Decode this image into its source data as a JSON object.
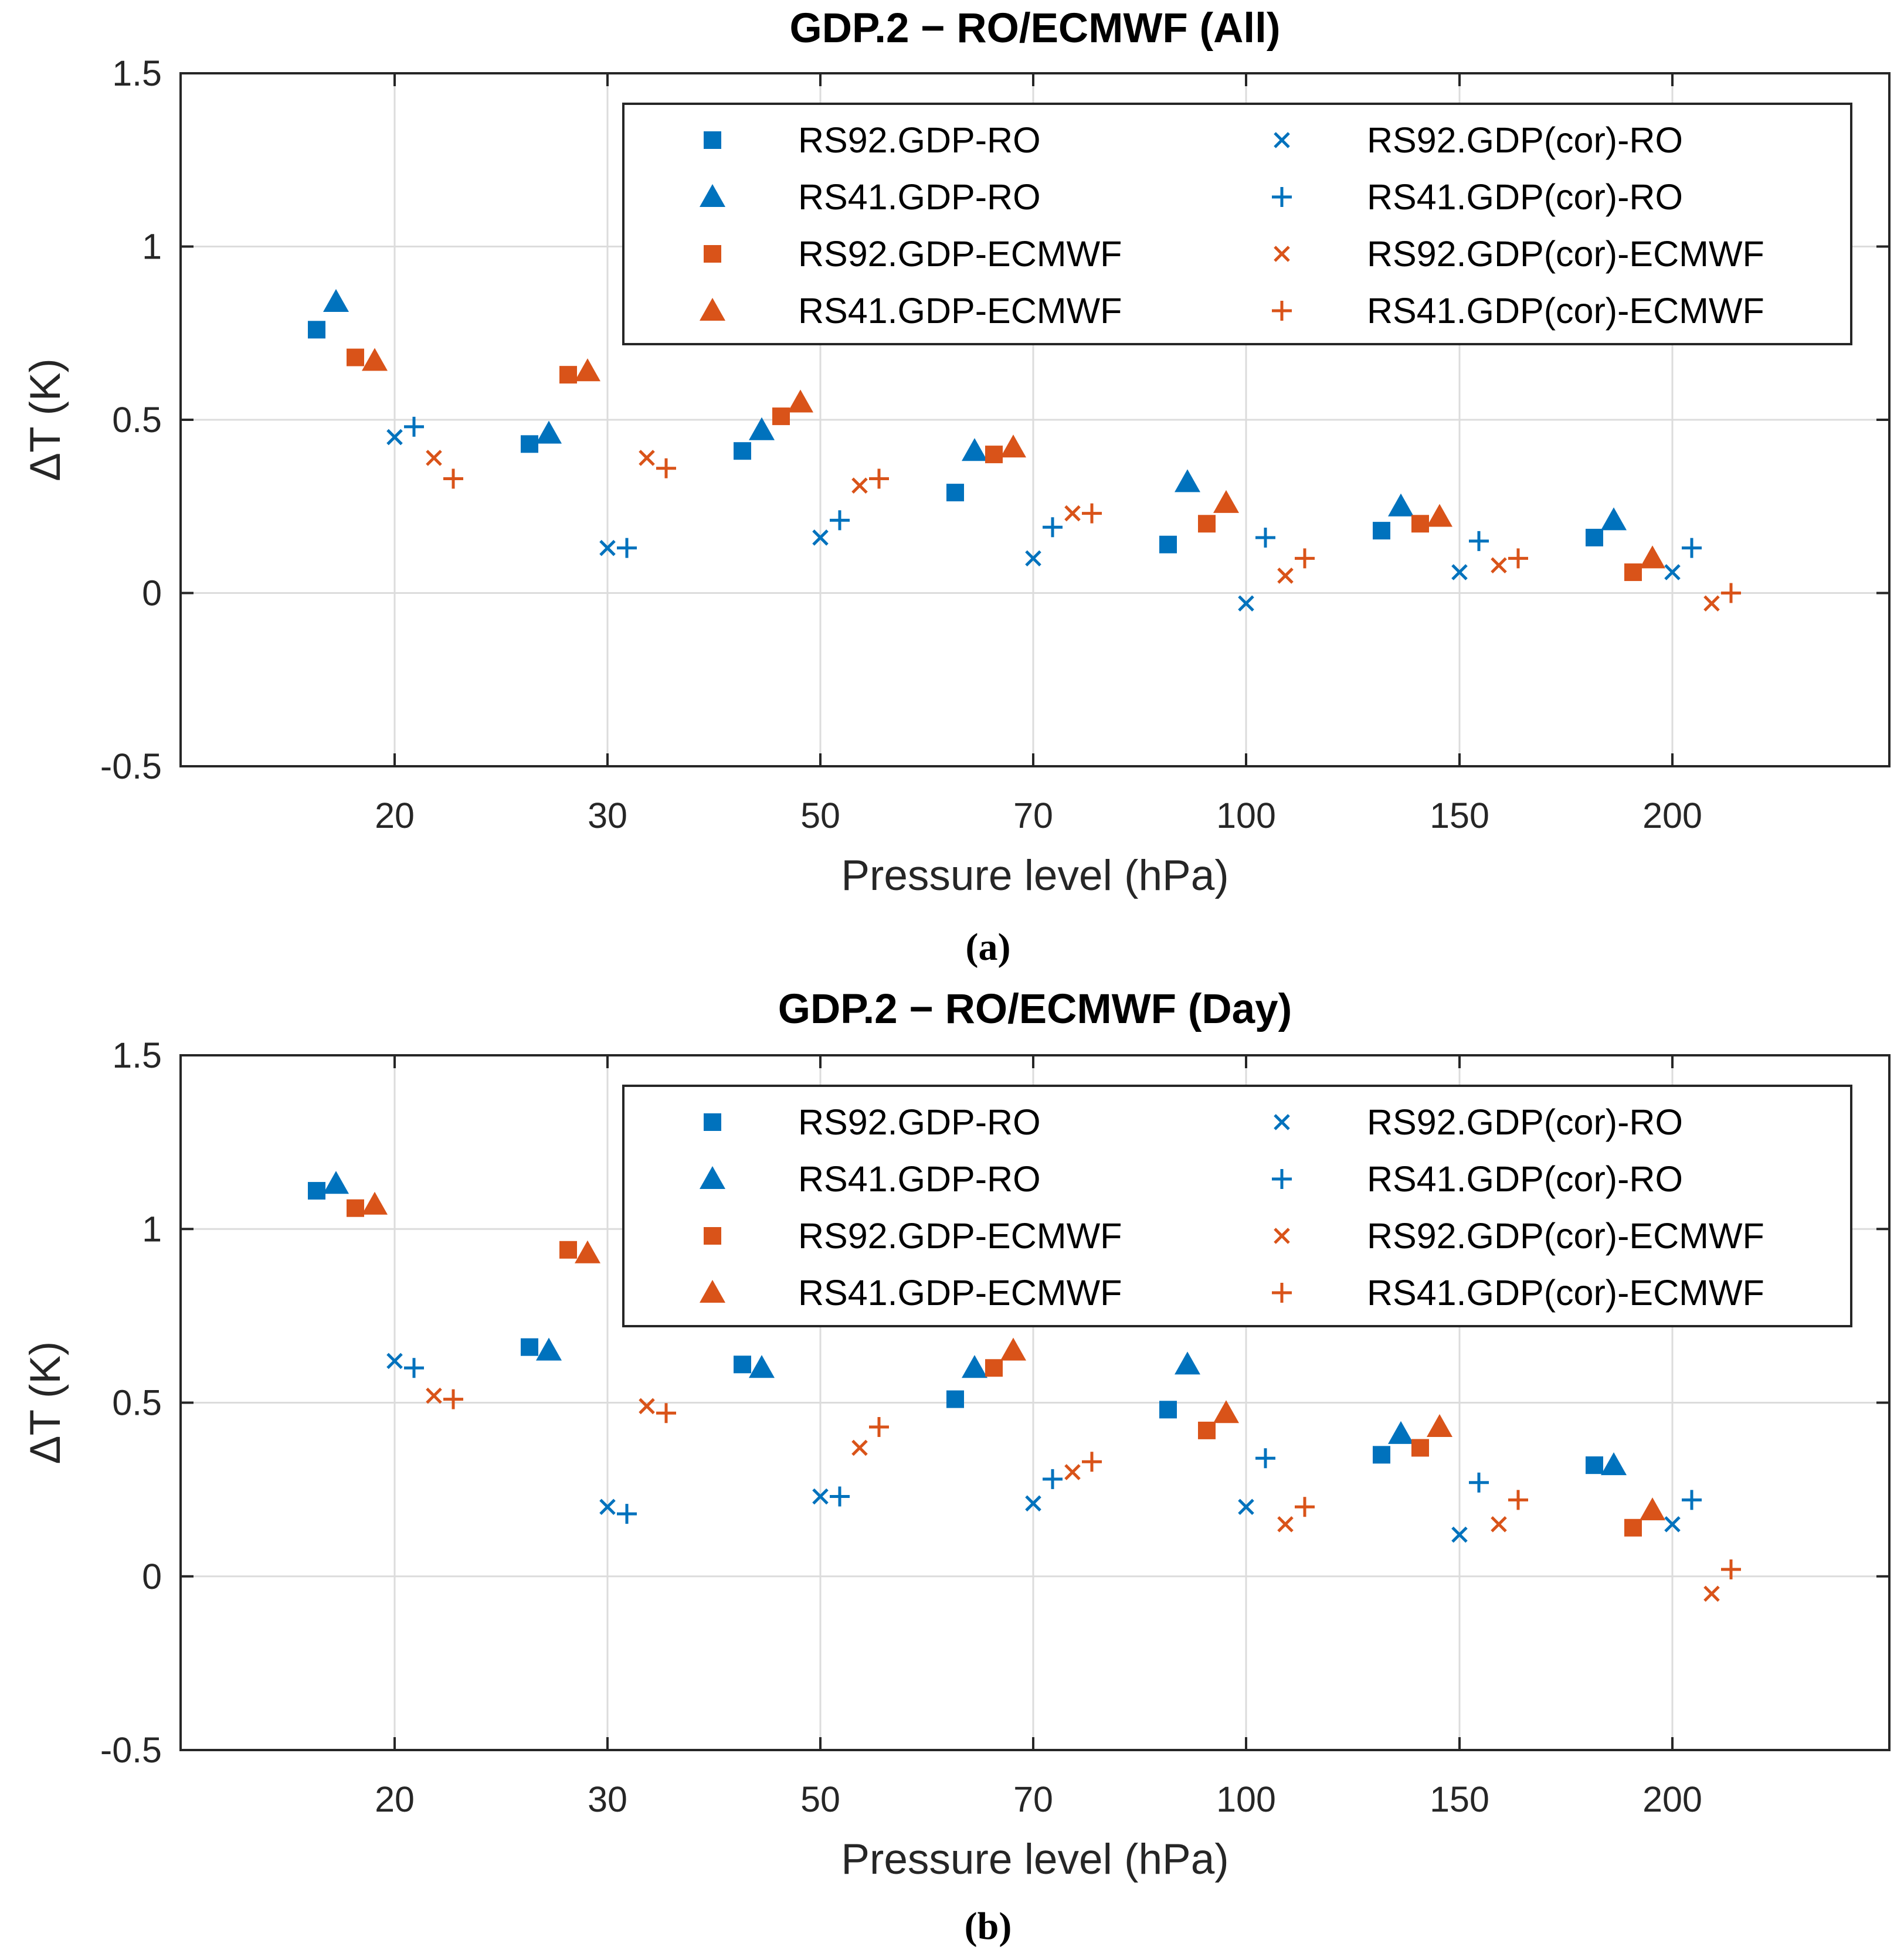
{
  "colors": {
    "blue": "#0072BD",
    "orange": "#D95319"
  },
  "series_legend": [
    {
      "name": "RS92.GDP-RO",
      "marker": "square",
      "color": "blue"
    },
    {
      "name": "RS41.GDP-RO",
      "marker": "triangle",
      "color": "blue"
    },
    {
      "name": "RS92.GDP-ECMWF",
      "marker": "square",
      "color": "orange"
    },
    {
      "name": "RS41.GDP-ECMWF",
      "marker": "triangle",
      "color": "orange"
    },
    {
      "name": "RS92.GDP(cor)-RO",
      "marker": "x",
      "color": "blue"
    },
    {
      "name": "RS41.GDP(cor)-RO",
      "marker": "plus",
      "color": "blue"
    },
    {
      "name": "RS92.GDP(cor)-ECMWF",
      "marker": "x",
      "color": "orange"
    },
    {
      "name": "RS41.GDP(cor)-ECMWF",
      "marker": "plus",
      "color": "orange"
    }
  ],
  "chart_data": [
    {
      "type": "scatter",
      "title": "GDP.2  − RO/ECMWF (All)",
      "caption": "(a)",
      "xlabel": "Pressure level (hPa)",
      "ylabel": "ΔT (K)",
      "categories": [
        "20",
        "30",
        "50",
        "70",
        "100",
        "150",
        "200"
      ],
      "ylim": [
        -0.5,
        1.5
      ],
      "yticks": [
        "-0.5",
        "0",
        "0.5",
        "1",
        "1.5"
      ],
      "legend_position": "top-right",
      "grid": true,
      "series": [
        {
          "name": "RS92.GDP-RO",
          "values": [
            0.76,
            0.43,
            0.41,
            0.29,
            0.14,
            0.18,
            0.16
          ]
        },
        {
          "name": "RS41.GDP-RO",
          "values": [
            0.84,
            0.46,
            0.47,
            0.41,
            0.32,
            0.25,
            0.21
          ]
        },
        {
          "name": "RS92.GDP-ECMWF",
          "values": [
            0.68,
            0.63,
            0.51,
            0.4,
            0.2,
            0.2,
            0.06
          ]
        },
        {
          "name": "RS41.GDP-ECMWF",
          "values": [
            0.67,
            0.64,
            0.55,
            0.42,
            0.26,
            0.22,
            0.1
          ]
        },
        {
          "name": "RS92.GDP(cor)-RO",
          "values": [
            0.45,
            0.13,
            0.16,
            0.1,
            -0.03,
            0.06,
            0.06
          ]
        },
        {
          "name": "RS41.GDP(cor)-RO",
          "values": [
            0.48,
            0.13,
            0.21,
            0.19,
            0.16,
            0.15,
            0.13
          ]
        },
        {
          "name": "RS92.GDP(cor)-ECMWF",
          "values": [
            0.39,
            0.39,
            0.31,
            0.23,
            0.05,
            0.08,
            -0.03
          ]
        },
        {
          "name": "RS41.GDP(cor)-ECMWF",
          "values": [
            0.33,
            0.36,
            0.33,
            0.23,
            0.1,
            0.1,
            0.0
          ]
        }
      ]
    },
    {
      "type": "scatter",
      "title": "GDP.2  − RO/ECMWF (Day)",
      "caption": "(b)",
      "xlabel": "Pressure level (hPa)",
      "ylabel": "ΔT (K)",
      "categories": [
        "20",
        "30",
        "50",
        "70",
        "100",
        "150",
        "200"
      ],
      "ylim": [
        -0.5,
        1.5
      ],
      "yticks": [
        "-0.5",
        "0",
        "0.5",
        "1",
        "1.5"
      ],
      "legend_position": "top-right",
      "grid": true,
      "series": [
        {
          "name": "RS92.GDP-RO",
          "values": [
            1.11,
            0.66,
            0.61,
            0.51,
            0.48,
            0.35,
            0.32
          ]
        },
        {
          "name": "RS41.GDP-RO",
          "values": [
            1.13,
            0.65,
            0.6,
            0.6,
            0.61,
            0.41,
            0.32
          ]
        },
        {
          "name": "RS92.GDP-ECMWF",
          "values": [
            1.06,
            0.94,
            null,
            0.6,
            0.42,
            0.37,
            0.14
          ]
        },
        {
          "name": "RS41.GDP-ECMWF",
          "values": [
            1.07,
            0.93,
            null,
            0.65,
            0.47,
            0.43,
            0.19
          ]
        },
        {
          "name": "RS92.GDP(cor)-RO",
          "values": [
            0.62,
            0.2,
            0.23,
            0.21,
            0.2,
            0.12,
            0.15
          ]
        },
        {
          "name": "RS41.GDP(cor)-RO",
          "values": [
            0.6,
            0.18,
            0.23,
            0.28,
            0.34,
            0.27,
            0.22
          ]
        },
        {
          "name": "RS92.GDP(cor)-ECMWF",
          "values": [
            0.52,
            0.49,
            0.37,
            0.3,
            0.15,
            0.15,
            -0.05
          ]
        },
        {
          "name": "RS41.GDP(cor)-ECMWF",
          "values": [
            0.51,
            0.47,
            0.43,
            0.33,
            0.2,
            0.22,
            0.02
          ]
        }
      ]
    }
  ]
}
